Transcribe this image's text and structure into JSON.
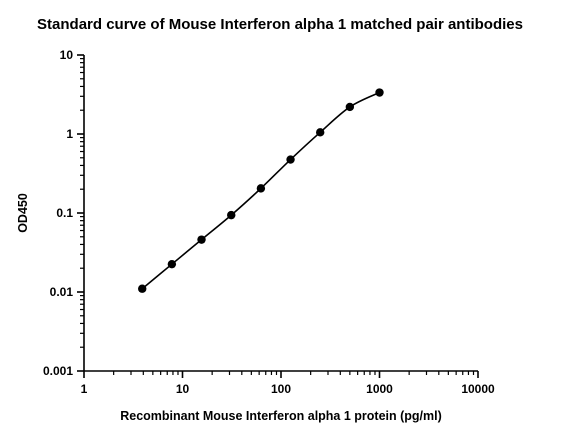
{
  "chart_data": {
    "type": "scatter",
    "title": "Standard curve of Mouse Interferon alpha 1 matched pair antibodies",
    "xlabel": "Recombinant Mouse Interferon alpha 1 protein (pg/ml)",
    "ylabel": "OD450",
    "xscale": "log",
    "yscale": "log",
    "xlim": [
      1,
      10000
    ],
    "ylim": [
      0.001,
      10
    ],
    "x_ticks": [
      "1",
      "10",
      "100",
      "1000",
      "10000"
    ],
    "y_ticks": [
      "0.001",
      "0.01",
      "0.1",
      "1",
      "10"
    ],
    "grid": false,
    "legend": "none",
    "fit_line": true,
    "series": [
      {
        "x": [
          3.9,
          7.8,
          15.6,
          31.25,
          62.5,
          125,
          250,
          500,
          1000
        ],
        "y": [
          0.011,
          0.0225,
          0.046,
          0.094,
          0.205,
          0.475,
          1.05,
          2.2,
          3.35
        ]
      }
    ],
    "colors": {
      "marker": "#000000",
      "line": "#000000",
      "axis": "#000000"
    }
  }
}
